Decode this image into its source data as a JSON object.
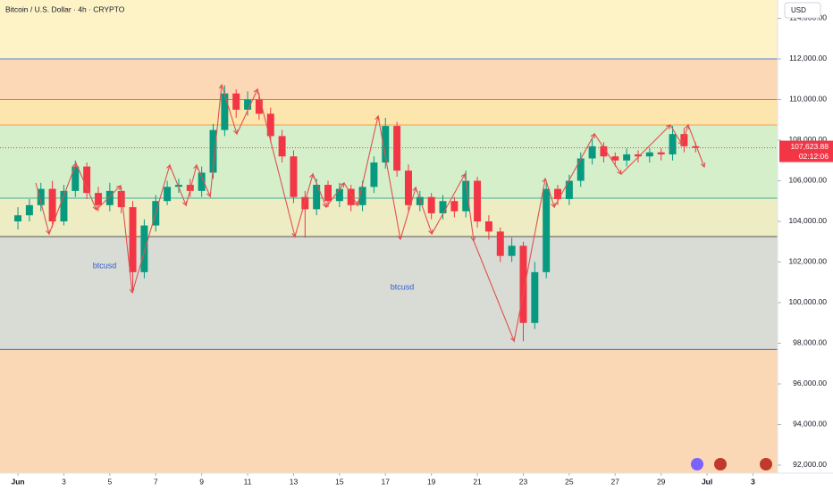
{
  "chart_data": {
    "type": "candlestick",
    "title": "Bitcoin / U.S. Dollar · 4h · CRYPTO",
    "currency": "USD",
    "up_color": "#089981",
    "down_color": "#f23645",
    "xlim": [
      0.22,
      34.07
    ],
    "ylim": [
      91604,
      114901
    ],
    "xticks": [
      {
        "value": 1,
        "label": "Jun"
      },
      3,
      5,
      7,
      9,
      11,
      13,
      15,
      17,
      19,
      21,
      23,
      25,
      27,
      29,
      {
        "value": 31,
        "label": "Jul"
      },
      {
        "value": 33,
        "label": "3"
      }
    ],
    "yticks": [
      {
        "value": 92000,
        "label": "92,000.00"
      },
      {
        "value": 94000,
        "label": "94,000.00"
      },
      {
        "value": 96000,
        "label": "96,000.00"
      },
      {
        "value": 98000,
        "label": "98,000.00"
      },
      {
        "value": 100000,
        "label": "100,000.00"
      },
      {
        "value": 102000,
        "label": "102,000.00"
      },
      {
        "value": 104000,
        "label": "104,000.00"
      },
      {
        "value": 106000,
        "label": "106,000.00"
      },
      {
        "value": 108000,
        "label": "108,000.00"
      },
      {
        "value": 110000,
        "label": "110,000.00"
      },
      {
        "value": 112000,
        "label": "112,000.00"
      },
      {
        "value": 114000,
        "label": "114,000.00"
      }
    ],
    "x": [
      1.0,
      1.5,
      2.0,
      2.5,
      3.0,
      3.5,
      4.0,
      4.5,
      5.0,
      5.5,
      6.0,
      6.5,
      7.0,
      7.5,
      8.0,
      8.5,
      9.0,
      9.5,
      10.0,
      10.5,
      11.0,
      11.5,
      12.0,
      12.5,
      13.0,
      13.5,
      14.0,
      14.5,
      15.0,
      15.5,
      16.0,
      16.5,
      17.0,
      17.5,
      18.0,
      18.5,
      19.0,
      19.5,
      20.0,
      20.5,
      21.0,
      21.5,
      22.0,
      22.5,
      23.0,
      23.5,
      24.0,
      24.5,
      25.0,
      25.5,
      26.0,
      26.5,
      27.0,
      27.5,
      28.0,
      28.5,
      29.0,
      29.5,
      30.0,
      30.5
    ],
    "open": [
      104000,
      104300,
      104800,
      105600,
      104000,
      105500,
      106700,
      105400,
      104800,
      105500,
      104700,
      101500,
      103800,
      105000,
      105700,
      105800,
      105500,
      106400,
      108500,
      110300,
      109500,
      110000,
      109300,
      108200,
      107200,
      105200,
      104600,
      105800,
      105000,
      105600,
      104800,
      105700,
      106900,
      108700,
      106500,
      104800,
      105200,
      104400,
      105000,
      104500,
      106000,
      104000,
      103500,
      102300,
      102800,
      99000,
      101500,
      105600,
      105100,
      106000,
      107100,
      107700,
      107200,
      107000,
      107300,
      107200,
      107400,
      107300,
      108300,
      107700
    ],
    "high": [
      104700,
      105100,
      105900,
      106000,
      105800,
      107000,
      106900,
      105700,
      105900,
      105700,
      105000,
      104100,
      105300,
      106000,
      106100,
      106100,
      106700,
      108800,
      110700,
      110500,
      110400,
      110300,
      109600,
      108500,
      107500,
      105500,
      106100,
      106000,
      105900,
      105800,
      106000,
      107200,
      109100,
      108900,
      106800,
      105500,
      105400,
      105300,
      105200,
      106500,
      106200,
      104300,
      103700,
      103200,
      103000,
      102000,
      105900,
      105800,
      106300,
      107400,
      108100,
      107900,
      107400,
      107600,
      107500,
      107600,
      107600,
      108700,
      108600,
      107900
    ],
    "low": [
      103600,
      104000,
      104500,
      103700,
      103800,
      105200,
      105100,
      104500,
      104500,
      104400,
      100500,
      101200,
      103500,
      104800,
      105400,
      105200,
      105200,
      106100,
      108200,
      109100,
      109200,
      109000,
      107900,
      106900,
      104900,
      103200,
      104300,
      104700,
      104700,
      104500,
      104500,
      105400,
      106600,
      106200,
      104500,
      104500,
      104100,
      104100,
      104200,
      104200,
      103700,
      103100,
      102000,
      102000,
      98100,
      98700,
      101200,
      104800,
      104800,
      105700,
      106800,
      106900,
      106700,
      106700,
      106900,
      106900,
      107000,
      107000,
      107400,
      107400
    ],
    "close": [
      104300,
      104800,
      105600,
      104000,
      105500,
      106700,
      105400,
      104800,
      105500,
      104700,
      101500,
      103800,
      105000,
      105700,
      105800,
      105500,
      106400,
      108500,
      110300,
      109500,
      110000,
      109300,
      108200,
      107200,
      105200,
      104600,
      105800,
      105000,
      105600,
      104800,
      105700,
      106900,
      108700,
      106500,
      104800,
      105200,
      104400,
      105000,
      104500,
      106000,
      104000,
      103500,
      102300,
      102800,
      99000,
      101500,
      105600,
      105100,
      106000,
      107100,
      107700,
      107200,
      107000,
      107300,
      107200,
      107400,
      107300,
      108300,
      107700,
      107623.88
    ],
    "zones": [
      {
        "from": 112000,
        "to": 114901,
        "color": "#fdf3c6"
      },
      {
        "from": 110000,
        "to": 112000,
        "color": "#fcd8b6"
      },
      {
        "from": 108747,
        "to": 110000,
        "color": "#fde6ae"
      },
      {
        "from": 105142,
        "to": 108747,
        "color": "#d5efcb"
      },
      {
        "from": 103250,
        "to": 105142,
        "color": "#eeecc3"
      },
      {
        "from": 97700,
        "to": 103250,
        "color": "#d8dcd5"
      },
      {
        "from": 91604,
        "to": 97700,
        "color": "#fbd8b5"
      }
    ],
    "levels": [
      {
        "value": 112000,
        "color": "#5b7fd6"
      },
      {
        "value": 110000,
        "color": "#e8704f"
      },
      {
        "value": 108747,
        "color": "#f0a050"
      },
      {
        "value": 105142,
        "color": "#3fb09b"
      },
      {
        "value": 103250,
        "color": "#555555"
      },
      {
        "value": 97700,
        "color": "#4a6fe0"
      }
    ],
    "zigzag": {
      "color": "#e0524f",
      "x": [
        1.78,
        2.36,
        3.53,
        4.42,
        5.47,
        5.98,
        7.61,
        8.32,
        8.78,
        9.37,
        9.87,
        10.53,
        11.43,
        13.06,
        13.84,
        14.42,
        15.2,
        15.79,
        16.68,
        17.65,
        18.32,
        19.02,
        20.46,
        20.84,
        22.6,
        23.96,
        24.35,
        26.1,
        27.26,
        29.4,
        29.91,
        30.18,
        30.88
      ],
      "y": [
        105890,
        103385,
        106857,
        104571,
        105758,
        100483,
        106769,
        104791,
        106769,
        105230,
        110725,
        108307,
        110505,
        103252,
        106329,
        104703,
        105890,
        104791,
        109187,
        103120,
        105670,
        103385,
        106329,
        103032,
        98109,
        106109,
        104703,
        108307,
        106329,
        108747,
        107780,
        108747,
        106681
      ]
    },
    "last_price": {
      "value": 107623.88,
      "label": "107,623.88",
      "color": "#f23645"
    },
    "countdown": "02:12:06",
    "annotations": [
      "btcusd",
      "btcusd"
    ]
  }
}
